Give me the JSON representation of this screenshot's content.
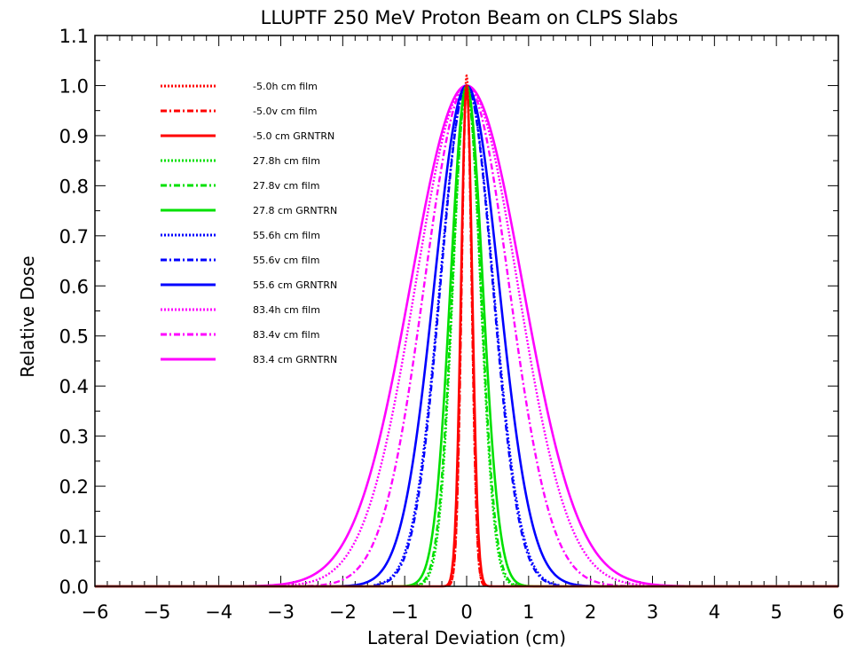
{
  "chart_data": {
    "type": "line",
    "title": "LLUPTF 250 MeV Proton Beam on CLPS Slabs",
    "xlabel": "Lateral Deviation (cm)",
    "ylabel": "Relative Dose",
    "xlim": [
      -6,
      6
    ],
    "ylim": [
      0,
      1.1
    ],
    "x_ticks": [
      "-6",
      "-5",
      "-4",
      "-3",
      "-2",
      "-1",
      "0",
      "1",
      "2",
      "3",
      "4",
      "5",
      "6"
    ],
    "y_ticks": [
      "0.0",
      "0.1",
      "0.2",
      "0.3",
      "0.4",
      "0.5",
      "0.6",
      "0.7",
      "0.8",
      "0.9",
      "1.0",
      "1.1"
    ],
    "grid": false,
    "legend_position": "top-left",
    "profile_model": "gaussian",
    "series": [
      {
        "name": "-5.0h cm film",
        "color": "#ff0000",
        "dash": "dotted",
        "sigma": 0.08,
        "peak": 1.02,
        "x_range": [
          -0.3,
          0.3
        ]
      },
      {
        "name": "-5.0v cm film",
        "color": "#ff0000",
        "dash": "dashdot",
        "sigma": 0.08,
        "peak": 1.0,
        "x_range": [
          -0.3,
          0.3
        ]
      },
      {
        "name": "-5.0 cm GRNTRN",
        "color": "#ff0000",
        "dash": "solid",
        "sigma": 0.09,
        "peak": 1.0,
        "x_range": [
          -6,
          6
        ]
      },
      {
        "name": "27.8h cm film",
        "color": "#00e000",
        "dash": "dotted",
        "sigma": 0.22,
        "peak": 1.0,
        "x_range": [
          -0.9,
          0.9
        ]
      },
      {
        "name": "27.8v cm film",
        "color": "#00e000",
        "dash": "dashdot",
        "sigma": 0.23,
        "peak": 0.99,
        "x_range": [
          -0.9,
          0.9
        ]
      },
      {
        "name": "27.8 cm GRNTRN",
        "color": "#00e000",
        "dash": "solid",
        "sigma": 0.26,
        "peak": 1.0,
        "x_range": [
          -6,
          6
        ]
      },
      {
        "name": "55.6h cm film",
        "color": "#0000ff",
        "dash": "dotted",
        "sigma": 0.43,
        "peak": 1.0,
        "x_range": [
          -1.5,
          1.5
        ]
      },
      {
        "name": "55.6v cm film",
        "color": "#0000ff",
        "dash": "dashdot",
        "sigma": 0.42,
        "peak": 1.0,
        "x_range": [
          -1.5,
          1.5
        ]
      },
      {
        "name": "55.6 cm GRNTRN",
        "color": "#0000ff",
        "dash": "solid",
        "sigma": 0.52,
        "peak": 1.0,
        "x_range": [
          -6,
          6
        ]
      },
      {
        "name": "83.4h cm film",
        "color": "#ff00ff",
        "dash": "dotted",
        "sigma": 0.82,
        "peak": 1.0,
        "x_range": [
          -3,
          2.9
        ]
      },
      {
        "name": "83.4v cm film",
        "color": "#ff00ff",
        "dash": "dashdot",
        "sigma": 0.68,
        "peak": 1.0,
        "x_range": [
          -3,
          2.9
        ]
      },
      {
        "name": "83.4 cm GRNTRN",
        "color": "#ff00ff",
        "dash": "solid",
        "sigma": 0.9,
        "peak": 1.0,
        "x_range": [
          -6,
          6
        ]
      }
    ]
  }
}
